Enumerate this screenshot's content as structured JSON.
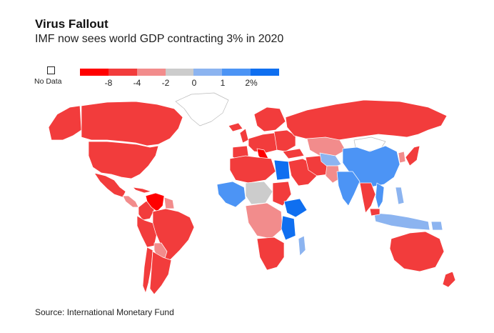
{
  "header": {
    "title": "Virus Fallout",
    "subtitle": "IMF now sees world GDP contracting 3% in 2020"
  },
  "legend": {
    "no_data_label": "No Data",
    "colors": [
      "#ff0000",
      "#f23c3c",
      "#f28c8c",
      "#cccccc",
      "#8cb4f0",
      "#4c94f5",
      "#0f6ff0"
    ],
    "ticks": [
      "-8",
      "-4",
      "-2",
      "0",
      "1",
      "2%"
    ]
  },
  "source": "Source: International Monetary Fund",
  "colors": {
    "deep_red": "#ff0000",
    "red": "#f23c3c",
    "light_red": "#f28c8c",
    "neutral": "#cccccc",
    "light_blue": "#8cb4f0",
    "mid_blue": "#4c94f5",
    "blue": "#0f6ff0",
    "no_data": "#ffffff"
  }
}
